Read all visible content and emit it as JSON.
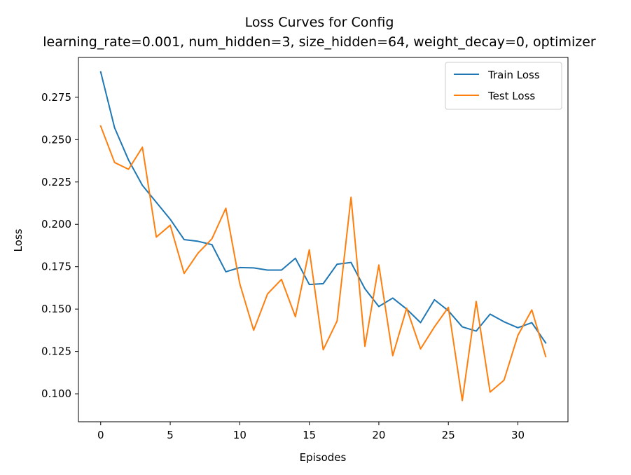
{
  "chart_data": {
    "type": "line",
    "title": "Loss Curves for Config",
    "subtitle": "learning_rate=0.001, num_hidden=3, size_hidden=64, weight_decay=0, optimizer",
    "xlabel": "Episodes",
    "ylabel": "Loss",
    "xlim": [
      -1.6,
      33.6
    ],
    "ylim": [
      0.0835,
      0.2985
    ],
    "xticks": [
      0,
      5,
      10,
      15,
      20,
      25,
      30
    ],
    "yticks": [
      0.1,
      0.125,
      0.15,
      0.175,
      0.2,
      0.225,
      0.25,
      0.275
    ],
    "ytick_labels": [
      "0.100",
      "0.125",
      "0.150",
      "0.175",
      "0.200",
      "0.225",
      "0.250",
      "0.275"
    ],
    "grid": false,
    "legend": "upper-right",
    "x": [
      0,
      1,
      2,
      3,
      4,
      5,
      6,
      7,
      8,
      9,
      10,
      11,
      12,
      13,
      14,
      15,
      16,
      17,
      18,
      19,
      20,
      21,
      22,
      23,
      24,
      25,
      26,
      27,
      28,
      29,
      30,
      31,
      32
    ],
    "series": [
      {
        "name": "Train Loss",
        "color": "#1f77b4",
        "values": [
          0.29,
          0.257,
          0.238,
          0.223,
          0.213,
          0.203,
          0.191,
          0.19,
          0.188,
          0.172,
          0.1745,
          0.1743,
          0.173,
          0.173,
          0.18,
          0.1645,
          0.165,
          0.1765,
          0.1775,
          0.162,
          0.1515,
          0.1565,
          0.15,
          0.142,
          0.1555,
          0.149,
          0.1395,
          0.137,
          0.147,
          0.1425,
          0.139,
          0.142,
          0.13
        ]
      },
      {
        "name": "Test Loss",
        "color": "#ff7f0e",
        "values": [
          0.258,
          0.2365,
          0.2325,
          0.2455,
          0.1925,
          0.1995,
          0.171,
          0.183,
          0.1915,
          0.2095,
          0.165,
          0.1375,
          0.159,
          0.1675,
          0.1455,
          0.185,
          0.126,
          0.143,
          0.216,
          0.128,
          0.176,
          0.1225,
          0.1505,
          0.1265,
          0.1395,
          0.151,
          0.096,
          0.1545,
          0.101,
          0.108,
          0.1345,
          0.1495,
          0.122
        ]
      }
    ]
  }
}
